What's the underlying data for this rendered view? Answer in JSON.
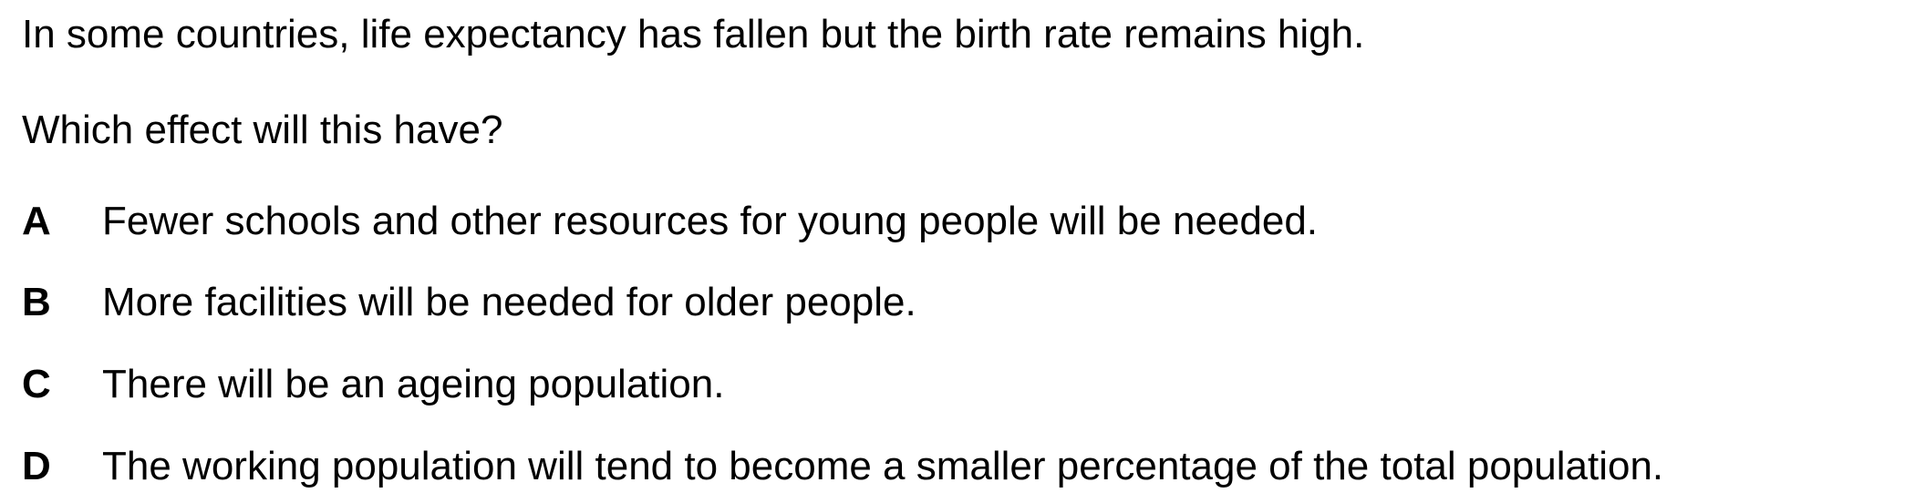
{
  "question": {
    "context": "In some countries, life expectancy has fallen but the birth rate remains high.",
    "prompt": "Which effect will this have?",
    "options": [
      {
        "letter": "A",
        "text": "Fewer schools and other resources for young people will be needed."
      },
      {
        "letter": "B",
        "text": "More facilities will be needed for older people."
      },
      {
        "letter": "C",
        "text": "There will be an ageing population."
      },
      {
        "letter": "D",
        "text": "The working population will tend to become a smaller percentage of the total population."
      }
    ]
  }
}
